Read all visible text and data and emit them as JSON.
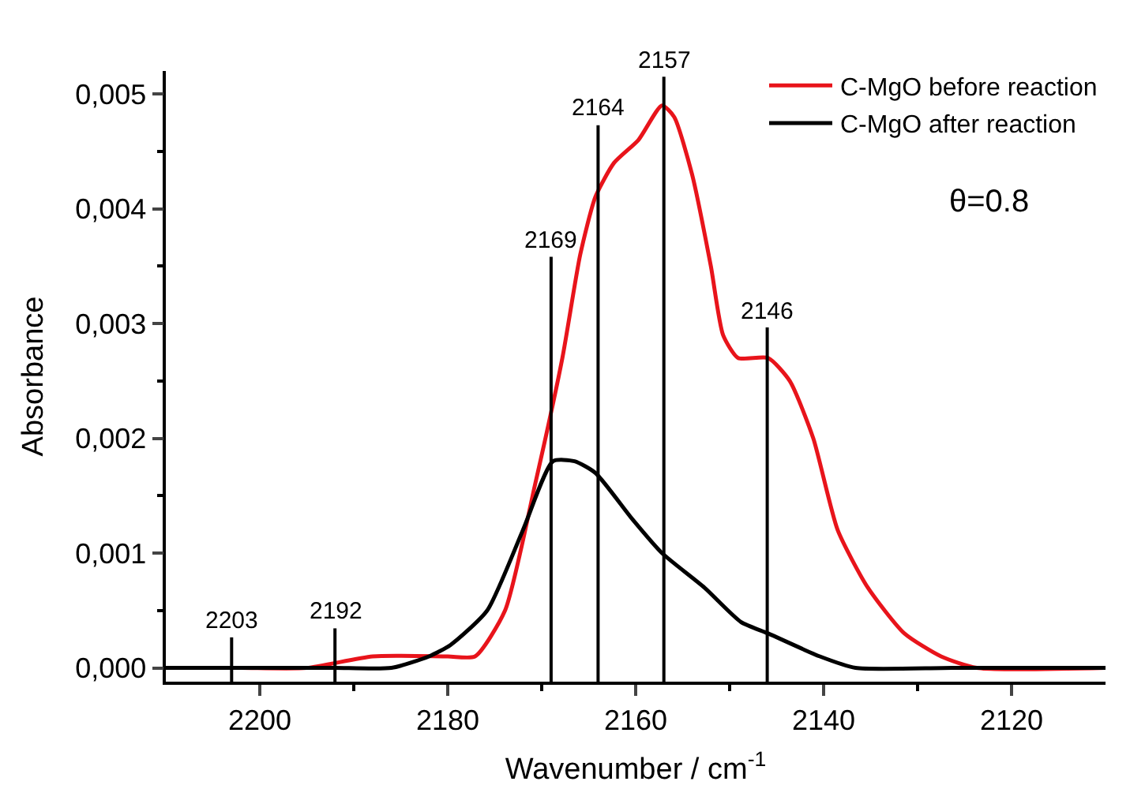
{
  "chart_data": {
    "type": "line",
    "xlabel": "Wavenumber / cm$^{-1}$",
    "ylabel": "Absorbance",
    "xlim": [
      2210,
      2110
    ],
    "xticks": [
      2200,
      2180,
      2160,
      2140,
      2120
    ],
    "ylim": [
      -0.00012,
      0.0052
    ],
    "yticks": [
      {
        "value": 0,
        "label": "0,000"
      },
      {
        "value": 0.001,
        "label": "0,001"
      },
      {
        "value": 0.002,
        "label": "0,002"
      },
      {
        "value": 0.003,
        "label": "0,003"
      },
      {
        "value": 0.004,
        "label": "0,004"
      },
      {
        "value": 0.005,
        "label": "0,005"
      }
    ],
    "legend": "top right",
    "marker": "none",
    "line_style": "solid",
    "series": [
      {
        "name": "C-MgO before reaction",
        "color": "#e8141b",
        "x": [
          2210,
          2202,
          2195,
          2188,
          2180,
          2177.1,
          2173.9,
          2170.7,
          2167.8,
          2165.9,
          2164.3,
          2162.3,
          2159.7,
          2157.2,
          2155.9,
          2154,
          2152,
          2150.7,
          2149.1,
          2145.9,
          2143.6,
          2141.1,
          2138.5,
          2135.3,
          2131.4,
          2127.5,
          2123.7,
          2110
        ],
        "values": [
          0.0,
          0.0,
          0.0,
          0.0001,
          0.0001,
          0.0001,
          0.0005,
          0.0016,
          0.0027,
          0.0036,
          0.0041,
          0.0044,
          0.0046,
          0.0049,
          0.0048,
          0.0043,
          0.0035,
          0.0029,
          0.0027,
          0.0027,
          0.0025,
          0.002,
          0.0012,
          0.0007,
          0.0003,
          0.0001,
          0.0,
          0.0
        ]
      },
      {
        "name": "C-MgO after reaction",
        "color": "#000000",
        "x": [
          2210,
          2204,
          2198,
          2192,
          2186,
          2182,
          2179.7,
          2175.8,
          2172,
          2168.8,
          2166.5,
          2164.3,
          2160.4,
          2157.2,
          2152.7,
          2148.8,
          2145.9,
          2140.4,
          2136.6,
          2126.3,
          2110
        ],
        "values": [
          0.0,
          0.0,
          0.0,
          0.0,
          0.0,
          0.0001,
          0.0002,
          0.0005,
          0.0012,
          0.0018,
          0.0018,
          0.0017,
          0.0013,
          0.001,
          0.0007,
          0.0004,
          0.0003,
          0.0001,
          0.0,
          0.0,
          0.0
        ]
      }
    ],
    "ref_lines": [
      {
        "axis": "x",
        "value": 2203,
        "label": "2203"
      },
      {
        "axis": "x",
        "value": 2192,
        "label": "2192"
      },
      {
        "axis": "x",
        "value": 2169,
        "label": "2169"
      },
      {
        "axis": "x",
        "value": 2164,
        "label": "2164"
      },
      {
        "axis": "x",
        "value": 2157,
        "label": "2157"
      },
      {
        "axis": "x",
        "value": 2146,
        "label": "2146"
      }
    ],
    "annotations": [
      "θ=0.8"
    ]
  }
}
